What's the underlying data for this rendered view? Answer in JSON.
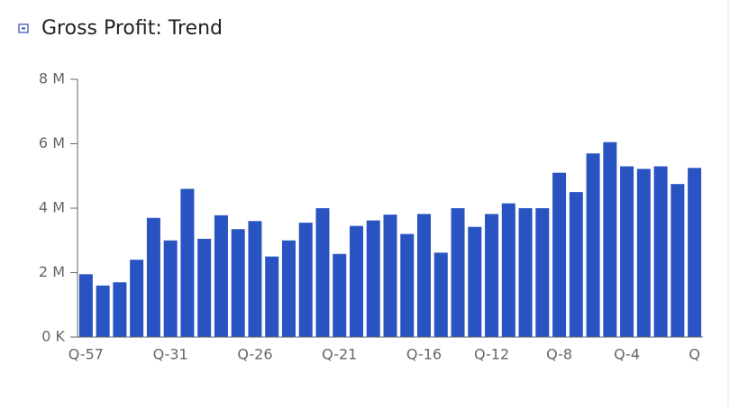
{
  "chart_data": {
    "type": "bar",
    "title": "Gross Profit: Trend",
    "categories": [
      "Q-57",
      null,
      null,
      null,
      null,
      "Q-31",
      null,
      null,
      null,
      null,
      "Q-26",
      null,
      null,
      null,
      null,
      "Q-21",
      null,
      null,
      null,
      null,
      "Q-16",
      null,
      null,
      null,
      "Q-12",
      null,
      null,
      null,
      "Q-8",
      null,
      null,
      null,
      "Q-4",
      null,
      null,
      null,
      "Q"
    ],
    "values": [
      1.95,
      1.6,
      1.7,
      2.4,
      3.7,
      3.0,
      4.6,
      3.05,
      3.78,
      3.35,
      3.6,
      2.5,
      3.0,
      3.55,
      4.0,
      2.58,
      3.45,
      3.62,
      3.8,
      3.2,
      3.82,
      2.62,
      4.0,
      3.42,
      3.82,
      4.15,
      4.0,
      4.0,
      5.1,
      4.5,
      5.7,
      6.05,
      5.3,
      5.22,
      5.3,
      4.75,
      5.25
    ],
    "color": "#2853c0",
    "ylim": [
      0,
      8
    ],
    "yticks": [
      {
        "value": 0,
        "label": "0 K"
      },
      {
        "value": 2,
        "label": "2 M"
      },
      {
        "value": 4,
        "label": "4 M"
      },
      {
        "value": 6,
        "label": "6 M"
      },
      {
        "value": 8,
        "label": "8 M"
      }
    ]
  }
}
